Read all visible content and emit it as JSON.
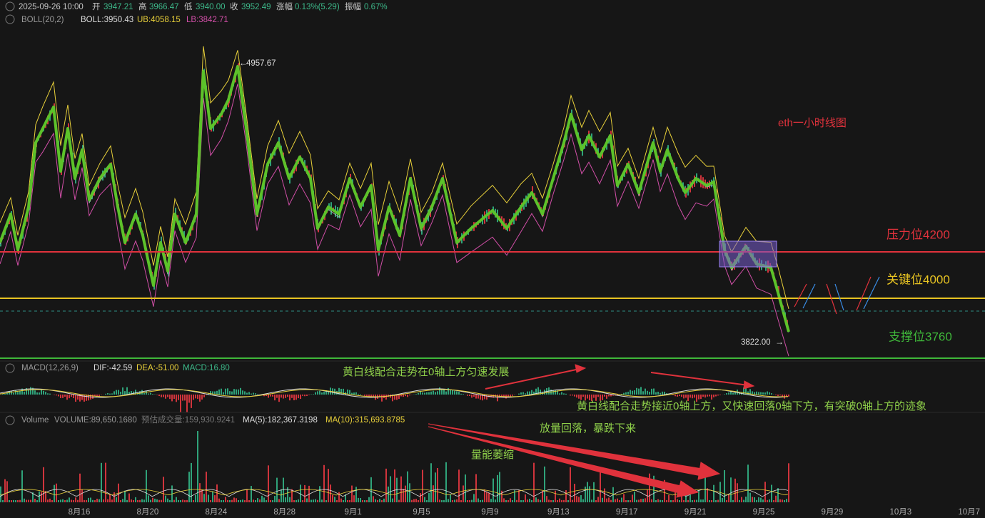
{
  "header": {
    "date": "2025-09-26 10:00",
    "open_label": "开",
    "open": "3947.21",
    "high_label": "高",
    "high": "3966.47",
    "low_label": "低",
    "low": "3940.00",
    "close_label": "收",
    "close": "3952.49",
    "change_label": "涨幅",
    "change": "0.13%(5.29)",
    "amplitude_label": "振幅",
    "amplitude": "0.67%"
  },
  "boll": {
    "name": "BOLL(20,2)",
    "mid": "BOLL:3950.43",
    "ub": "UB:4058.15",
    "lb": "LB:3842.71"
  },
  "price_markers": {
    "high": "4957.67",
    "low": "3822.00"
  },
  "chart_title": "eth一小时线图",
  "levels": [
    {
      "label": "压力位4200"
    },
    {
      "label": "关键位4000"
    },
    {
      "label": "支撑位3760"
    }
  ],
  "macd": {
    "name": "MACD(12,26,9)",
    "dif": "DIF:-42.59",
    "dea": "DEA:-51.00",
    "macd": "MACD:16.80"
  },
  "volume": {
    "name": "Volume",
    "volume": "VOLUME:89,650.1680",
    "estimate": "预估成交量:159,930.9241",
    "ma5": "MA(5):182,367.3198",
    "ma10": "MA(10):315,693.8785"
  },
  "annotations": [
    "黄白线配合走势在0轴上方匀速发展",
    "黄白线配合走势接近0轴上方，又快速回落0轴下方，有突破0轴上方的迹象",
    "放量回落，暴跌下来",
    "量能萎缩"
  ],
  "dates": [
    "8月16",
    "8月20",
    "8月24",
    "8月28",
    "9月1",
    "9月5",
    "9月9",
    "9月13",
    "9月17",
    "9月21",
    "9月25",
    "9月29",
    "10月3",
    "10月7"
  ]
}
